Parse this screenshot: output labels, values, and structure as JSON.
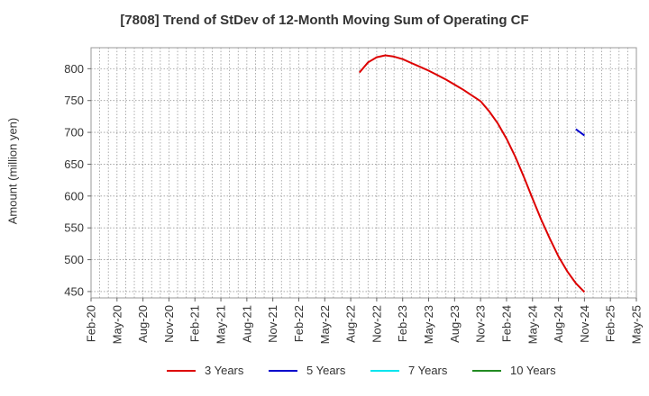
{
  "chart_data": {
    "type": "line",
    "title": "[7808]  Trend of StDev of 12-Month Moving Sum of Operating CF",
    "xlabel": "",
    "ylabel": "Amount (million yen)",
    "ylim": [
      440,
      833
    ],
    "yticks": [
      450,
      500,
      550,
      600,
      650,
      700,
      750,
      800
    ],
    "x_ticks": [
      "Feb-20",
      "May-20",
      "Aug-20",
      "Nov-20",
      "Feb-21",
      "May-21",
      "Aug-21",
      "Nov-21",
      "Feb-22",
      "May-22",
      "Aug-22",
      "Nov-22",
      "Feb-23",
      "May-23",
      "Aug-23",
      "Nov-23",
      "Feb-24",
      "May-24",
      "Aug-24",
      "Nov-24",
      "Feb-25",
      "May-25"
    ],
    "grid": true,
    "legend_position": "bottom",
    "series": [
      {
        "name": "3 Years",
        "color": "#dd0000",
        "x": [
          "Sep-22",
          "Oct-22",
          "Nov-22",
          "Dec-22",
          "Jan-23",
          "Feb-23",
          "Mar-23",
          "Apr-23",
          "May-23",
          "Jun-23",
          "Jul-23",
          "Aug-23",
          "Sep-23",
          "Oct-23",
          "Nov-23",
          "Dec-23",
          "Jan-24",
          "Feb-24",
          "Mar-24",
          "Apr-24",
          "May-24",
          "Jun-24",
          "Jul-24",
          "Aug-24",
          "Sep-24",
          "Oct-24",
          "Nov-24"
        ],
        "values": [
          794,
          810,
          818,
          821,
          819,
          815,
          809,
          803,
          797,
          790,
          783,
          775,
          767,
          758,
          749,
          733,
          714,
          690,
          662,
          630,
          596,
          563,
          533,
          505,
          482,
          463,
          449
        ]
      },
      {
        "name": "5 Years",
        "color": "#0000cc",
        "x": [
          "Oct-24",
          "Nov-24"
        ],
        "values": [
          705,
          695
        ]
      },
      {
        "name": "7 Years",
        "color": "#00e5ee",
        "x": [],
        "values": []
      },
      {
        "name": "10 Years",
        "color": "#228b22",
        "x": [],
        "values": []
      }
    ]
  }
}
